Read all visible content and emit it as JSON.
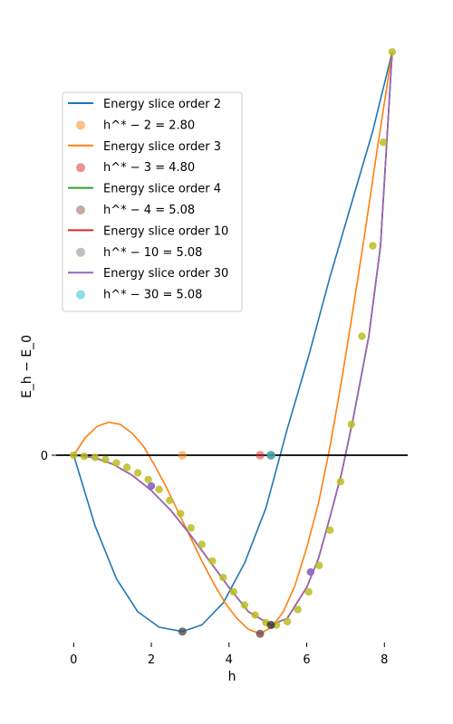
{
  "chart_data": {
    "type": "line",
    "title": "",
    "xlabel": "h",
    "ylabel": "E_h − E_0",
    "xlim": [
      -0.45,
      8.6
    ],
    "ylim": [
      -8.5,
      18.6
    ],
    "x_ticks": [
      0,
      2,
      4,
      6,
      8
    ],
    "x_tick_labels": [
      "0",
      "2",
      "4",
      "6",
      "8"
    ],
    "y_ticks": [
      0
    ],
    "y_tick_labels": [
      "0"
    ],
    "grid": false,
    "legend_position": "upper-left",
    "baseline": {
      "y": 0,
      "color": "#000000"
    },
    "series": [
      {
        "name": "Energy slice order 2",
        "color": "#1f77b4",
        "x": [
          0,
          0.55,
          1.1,
          1.65,
          2.2,
          2.8,
          3.3,
          3.85,
          4.4,
          4.95,
          5.5,
          6.05,
          6.6,
          7.15,
          7.7,
          8.2
        ],
        "y": [
          0,
          -3.2,
          -5.6,
          -7.1,
          -7.8,
          -8.0,
          -7.7,
          -6.7,
          -4.9,
          -2.4,
          1.2,
          4.5,
          8.1,
          11.4,
          14.7,
          18.3
        ]
      },
      {
        "name": "Energy slice order 3",
        "color": "#ff7f0e",
        "x": [
          0,
          0.3,
          0.6,
          0.9,
          1.2,
          1.5,
          1.8,
          2.1,
          2.4,
          2.7,
          3.0,
          3.3,
          3.6,
          3.9,
          4.2,
          4.5,
          4.8,
          5.1,
          5.4,
          5.7,
          6.0,
          6.3,
          6.6,
          6.9,
          7.2,
          7.5,
          7.8,
          8.2
        ],
        "y": [
          0,
          0.8,
          1.3,
          1.5,
          1.4,
          1.0,
          0.4,
          -0.5,
          -1.5,
          -2.6,
          -3.7,
          -4.8,
          -5.8,
          -6.7,
          -7.4,
          -7.9,
          -8.1,
          -7.8,
          -7.1,
          -5.9,
          -4.2,
          -2.2,
          0.4,
          3.4,
          6.7,
          10.1,
          13.7,
          18.3
        ]
      },
      {
        "name": "Energy slice order 4",
        "color": "#2ca02c",
        "x": [
          0,
          0.5,
          1.0,
          1.5,
          2.0,
          2.5,
          3.0,
          3.5,
          4.0,
          4.5,
          5.08,
          5.5,
          6.0,
          6.3,
          6.6,
          6.9,
          7.2,
          7.6,
          7.9,
          8.2
        ],
        "y": [
          0,
          -0.1,
          -0.4,
          -0.9,
          -1.6,
          -2.5,
          -3.6,
          -4.8,
          -6.0,
          -7.1,
          -7.7,
          -7.4,
          -6.0,
          -4.7,
          -2.8,
          -0.8,
          1.7,
          5.4,
          9.5,
          18.3
        ]
      },
      {
        "name": "Energy slice order 10",
        "color": "#d62728",
        "x": [
          0,
          0.5,
          1.0,
          1.5,
          2.0,
          2.5,
          3.0,
          3.5,
          4.0,
          4.5,
          5.08,
          5.5,
          6.0,
          6.3,
          6.6,
          6.9,
          7.2,
          7.6,
          7.9,
          8.2
        ],
        "y": [
          0,
          -0.1,
          -0.4,
          -0.9,
          -1.6,
          -2.5,
          -3.6,
          -4.8,
          -6.0,
          -7.1,
          -7.7,
          -7.4,
          -6.0,
          -4.7,
          -2.8,
          -0.8,
          1.7,
          5.4,
          9.5,
          18.3
        ]
      },
      {
        "name": "Energy slice order 30",
        "color": "#9467bd",
        "x": [
          0,
          0.5,
          1.0,
          1.5,
          2.0,
          2.5,
          3.0,
          3.5,
          4.0,
          4.5,
          5.08,
          5.5,
          6.0,
          6.3,
          6.6,
          6.9,
          7.2,
          7.6,
          7.9,
          8.2
        ],
        "y": [
          0,
          -0.1,
          -0.4,
          -0.9,
          -1.6,
          -2.5,
          -3.6,
          -4.8,
          -6.0,
          -7.1,
          -7.7,
          -7.4,
          -6.0,
          -4.7,
          -2.8,
          -0.8,
          1.7,
          5.4,
          9.5,
          18.3
        ]
      }
    ],
    "minima": [
      {
        "label": "h^* − 2 = 2.80",
        "color": "#ff7f0e",
        "x": 2.8
      },
      {
        "label": "h^* − 3 = 4.80",
        "color": "#d62728",
        "x": 4.8
      },
      {
        "label": "h^* − 4 = 5.08",
        "color": "#8c564b",
        "x": 5.08
      },
      {
        "label": "h^* − 10 = 5.08",
        "color": "#7f7f7f",
        "x": 5.08
      },
      {
        "label": "h^* − 30 = 5.08",
        "color": "#17becf",
        "x": 5.08
      }
    ],
    "minima_on_curve": [
      {
        "x": 2.8,
        "y": -8.0,
        "color": "#4d4d4d"
      },
      {
        "x": 4.8,
        "y": -8.1,
        "color": "#6b4a4a"
      },
      {
        "x": 5.08,
        "y": -7.7,
        "color": "#333333"
      }
    ],
    "sample_points": {
      "color": "#bcbd22",
      "x": [
        0,
        0.27,
        0.55,
        0.82,
        1.1,
        1.37,
        1.65,
        1.92,
        2.2,
        2.47,
        2.75,
        3.02,
        3.3,
        3.57,
        3.85,
        4.12,
        4.4,
        4.67,
        4.95,
        5.22,
        5.5,
        5.77,
        6.05,
        6.32,
        6.6,
        6.87,
        7.15,
        7.42,
        7.7,
        7.97,
        8.2
      ],
      "y": [
        0,
        -0.05,
        -0.1,
        -0.2,
        -0.35,
        -0.55,
        -0.8,
        -1.1,
        -1.55,
        -2.05,
        -2.65,
        -3.3,
        -4.05,
        -4.8,
        -5.55,
        -6.2,
        -6.8,
        -7.25,
        -7.6,
        -7.7,
        -7.55,
        -7.0,
        -6.2,
        -5.0,
        -3.4,
        -1.2,
        1.4,
        5.4,
        9.5,
        14.2,
        18.3
      ]
    },
    "highlight_points": {
      "color": "#9467bd",
      "x": [
        2.0,
        6.1
      ],
      "y": [
        -1.4,
        -5.3
      ]
    },
    "legend": [
      {
        "kind": "line",
        "color": "#1f77b4",
        "label": "Energy slice order 2"
      },
      {
        "kind": "dot",
        "color": "#ff7f0e",
        "label": "h^* − 2 = 2.80"
      },
      {
        "kind": "line",
        "color": "#ff7f0e",
        "label": "Energy slice order 3"
      },
      {
        "kind": "dot",
        "color": "#d62728",
        "label": "h^* − 3 = 4.80"
      },
      {
        "kind": "line",
        "color": "#2ca02c",
        "label": "Energy slice order 4"
      },
      {
        "kind": "dot",
        "color": "#8c564b",
        "label": "h^* − 4 = 5.08"
      },
      {
        "kind": "line",
        "color": "#d62728",
        "label": "Energy slice order 10"
      },
      {
        "kind": "dot",
        "color": "#7f7f7f",
        "label": "h^* − 10 = 5.08"
      },
      {
        "kind": "line",
        "color": "#9467bd",
        "label": "Energy slice order 30"
      },
      {
        "kind": "dot",
        "color": "#17becf",
        "label": "h^* − 30 = 5.08"
      }
    ]
  }
}
